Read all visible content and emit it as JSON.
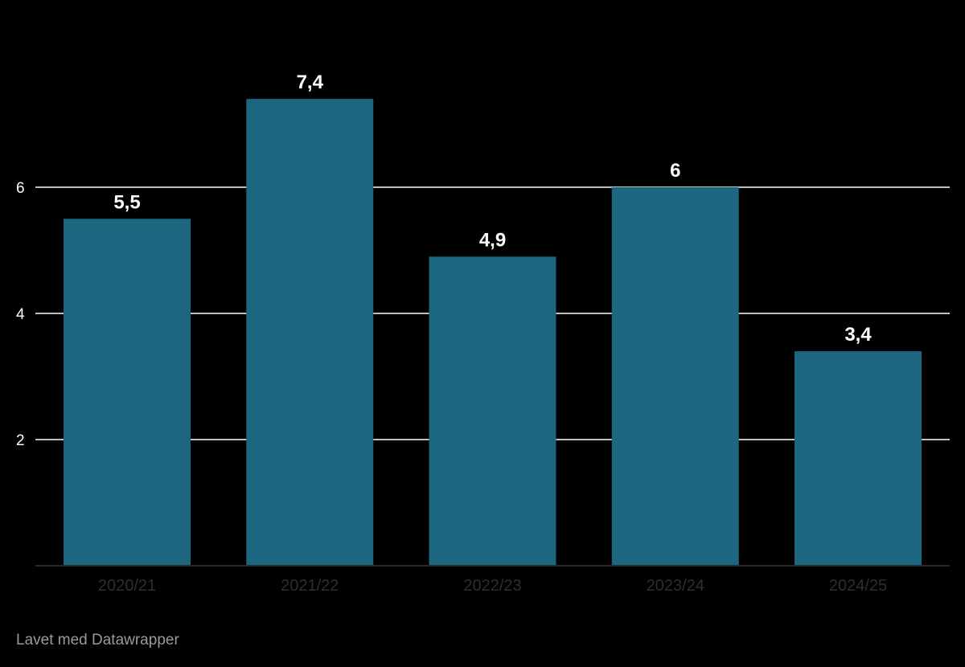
{
  "chart_data": {
    "type": "bar",
    "categories": [
      "2020/21",
      "2021/22",
      "2022/23",
      "2023/24",
      "2024/25"
    ],
    "values": [
      5.5,
      7.4,
      4.9,
      6,
      3.4
    ],
    "value_labels": [
      "5,5",
      "7,4",
      "4,9",
      "6",
      "3,4"
    ],
    "y_ticks": [
      2,
      4,
      6
    ],
    "ylim": [
      0,
      7.4
    ],
    "title": "",
    "xlabel": "",
    "ylabel": "",
    "grid": true,
    "bar_color": "#1d6680",
    "background": "#000000"
  },
  "footer": {
    "credit": "Lavet med Datawrapper"
  }
}
